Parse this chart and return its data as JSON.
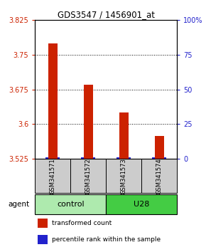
{
  "title": "GDS3547 / 1456901_at",
  "samples": [
    "GSM341571",
    "GSM341572",
    "GSM341573",
    "GSM341574"
  ],
  "red_values": [
    3.775,
    3.685,
    3.625,
    3.575
  ],
  "blue_values": [
    3.5275,
    3.5275,
    3.5275,
    3.5275
  ],
  "ylim_left": [
    3.525,
    3.825
  ],
  "ylim_right": [
    0,
    100
  ],
  "yticks_left": [
    3.525,
    3.6,
    3.675,
    3.75,
    3.825
  ],
  "yticks_right": [
    0,
    25,
    50,
    75,
    100
  ],
  "ytick_labels_left": [
    "3.525",
    "3.6",
    "3.675",
    "3.75",
    "3.825"
  ],
  "ytick_labels_right": [
    "0",
    "25",
    "50",
    "75",
    "100%"
  ],
  "groups": [
    {
      "label": "control",
      "samples": [
        0,
        1
      ],
      "color": "#aeeaae"
    },
    {
      "label": "U28",
      "samples": [
        2,
        3
      ],
      "color": "#44cc44"
    }
  ],
  "agent_label": "agent",
  "bar_color_red": "#cc2200",
  "bar_color_blue": "#2222cc",
  "bar_width": 0.25,
  "blue_bar_width": 0.4,
  "legend_items": [
    {
      "color": "#cc2200",
      "label": "transformed count"
    },
    {
      "color": "#2222cc",
      "label": "percentile rank within the sample"
    }
  ],
  "background_color": "#ffffff",
  "plot_bg": "#ffffff"
}
